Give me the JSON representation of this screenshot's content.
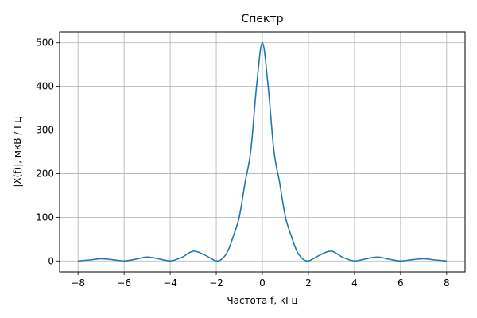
{
  "chart_data": {
    "type": "line",
    "title": "Спектр",
    "xlabel": "Частота f, кГц",
    "ylabel": "|X(f)|,  мкВ / Гц",
    "xlim": [
      -8.8,
      8.8
    ],
    "ylim": [
      -25,
      525
    ],
    "xticks": [
      -8,
      -6,
      -4,
      -2,
      0,
      2,
      4,
      6,
      8
    ],
    "xtick_labels": [
      "−8",
      "−6",
      "−4",
      "−2",
      "0",
      "2",
      "4",
      "6",
      "8"
    ],
    "yticks": [
      0,
      100,
      200,
      300,
      400,
      500
    ],
    "ytick_labels": [
      "0",
      "100",
      "200",
      "300",
      "400",
      "500"
    ],
    "grid": true,
    "series": [
      {
        "color": "#1f77b4",
        "x": [
          -8,
          -7.5,
          -7,
          -6.5,
          -6,
          -5.5,
          -5,
          -4.5,
          -4,
          -3.5,
          -3,
          -2.5,
          -2,
          -1.75,
          -1.5,
          -1.25,
          -1,
          -0.75,
          -0.5,
          -0.25,
          0,
          0.25,
          0.5,
          0.75,
          1,
          1.25,
          1.5,
          1.75,
          2,
          2.5,
          3,
          3.5,
          4,
          4.5,
          5,
          5.5,
          6,
          6.5,
          7,
          7.5,
          8
        ],
        "y": [
          0,
          2.3,
          5.1,
          2.9,
          0,
          4.1,
          9.0,
          5.0,
          0,
          8.2,
          22.5,
          13.6,
          0,
          4.9,
          22.5,
          58.4,
          101.3,
          179.5,
          253.3,
          401.2,
          500,
          401.2,
          253.3,
          179.5,
          101.3,
          58.4,
          22.5,
          4.9,
          0,
          13.6,
          22.5,
          8.2,
          0,
          5.0,
          9.0,
          4.1,
          0,
          2.9,
          5.1,
          2.3,
          0
        ]
      }
    ]
  }
}
